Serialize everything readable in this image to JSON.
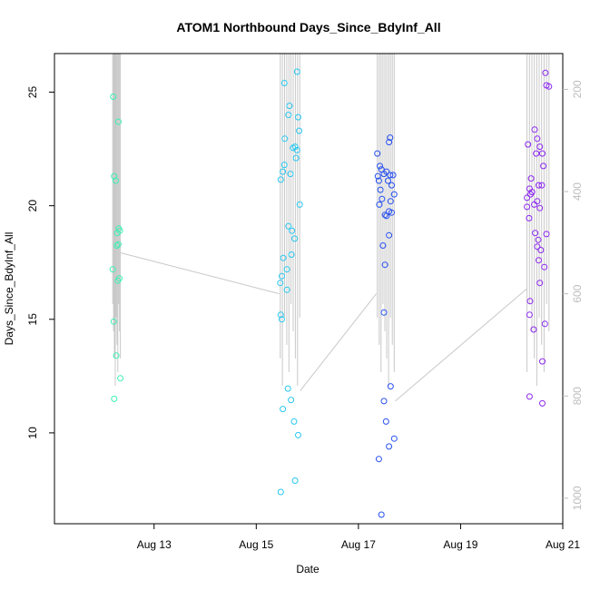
{
  "chart_data": {
    "type": "scatter",
    "title": "ATOM1 Northbound Days_Since_BdyInf_All",
    "xlabel": "Date",
    "ylabel": "Days_Since_BdyInf_All",
    "x_ticks": [
      "Aug 13",
      "Aug 15",
      "Aug 17",
      "Aug 19",
      "Aug 21"
    ],
    "y_ticks": [
      "10",
      "15",
      "20",
      "25"
    ],
    "y2_ticks": [
      "200",
      "400",
      "600",
      "800",
      "1000"
    ],
    "ylim": [
      6.0,
      26.7
    ],
    "y2lim": [
      1050,
      130
    ],
    "x_start_date": "2024-08-12",
    "xlim_days": [
      -0.95,
      9.0
    ],
    "colors": {
      "axis": "#000000",
      "secondary": "#bdbdbd",
      "trace": "#c8c8c8"
    },
    "series": [
      {
        "color": "#3cf0b4",
        "points": [
          [
            0.2,
            24.8
          ],
          [
            0.3,
            23.7
          ],
          [
            0.22,
            21.3
          ],
          [
            0.25,
            21.1
          ],
          [
            0.28,
            18.8
          ],
          [
            0.31,
            19.0
          ],
          [
            0.33,
            18.9
          ],
          [
            0.3,
            18.3
          ],
          [
            0.27,
            18.25
          ],
          [
            0.19,
            17.2
          ],
          [
            0.32,
            16.8
          ],
          [
            0.29,
            16.7
          ],
          [
            0.21,
            14.9
          ],
          [
            0.26,
            13.4
          ],
          [
            0.34,
            12.4
          ],
          [
            0.22,
            11.5
          ]
        ]
      },
      {
        "color": "#28c8f0",
        "points": [
          [
            3.55,
            25.4
          ],
          [
            3.8,
            25.9
          ],
          [
            3.65,
            24.4
          ],
          [
            3.63,
            24.0
          ],
          [
            3.82,
            23.9
          ],
          [
            3.84,
            23.3
          ],
          [
            3.56,
            22.95
          ],
          [
            3.72,
            22.55
          ],
          [
            3.76,
            22.6
          ],
          [
            3.8,
            22.45
          ],
          [
            3.78,
            22.1
          ],
          [
            3.55,
            21.8
          ],
          [
            3.52,
            21.5
          ],
          [
            3.67,
            21.4
          ],
          [
            3.48,
            21.15
          ],
          [
            3.85,
            20.05
          ],
          [
            3.63,
            19.1
          ],
          [
            3.7,
            18.9
          ],
          [
            3.75,
            18.55
          ],
          [
            3.69,
            17.85
          ],
          [
            3.53,
            17.7
          ],
          [
            3.6,
            17.2
          ],
          [
            3.5,
            16.9
          ],
          [
            3.47,
            16.6
          ],
          [
            3.6,
            16.3
          ],
          [
            3.48,
            15.2
          ],
          [
            3.5,
            15.0
          ],
          [
            3.62,
            11.95
          ],
          [
            3.68,
            11.45
          ],
          [
            3.52,
            11.05
          ],
          [
            3.74,
            10.5
          ],
          [
            3.82,
            9.9
          ],
          [
            3.76,
            7.9
          ],
          [
            3.48,
            7.4
          ]
        ]
      },
      {
        "color": "#2850f0",
        "points": [
          [
            5.37,
            22.3
          ],
          [
            5.62,
            23.0
          ],
          [
            5.6,
            22.8
          ],
          [
            5.42,
            21.75
          ],
          [
            5.45,
            21.6
          ],
          [
            5.55,
            21.5
          ],
          [
            5.5,
            21.4
          ],
          [
            5.62,
            21.35
          ],
          [
            5.68,
            21.35
          ],
          [
            5.38,
            21.3
          ],
          [
            5.4,
            21.1
          ],
          [
            5.58,
            21.1
          ],
          [
            5.65,
            20.9
          ],
          [
            5.43,
            20.7
          ],
          [
            5.7,
            20.5
          ],
          [
            5.46,
            20.3
          ],
          [
            5.63,
            20.2
          ],
          [
            5.41,
            20.05
          ],
          [
            5.6,
            19.75
          ],
          [
            5.65,
            19.7
          ],
          [
            5.52,
            19.6
          ],
          [
            5.55,
            19.55
          ],
          [
            5.48,
            18.25
          ],
          [
            5.6,
            18.7
          ],
          [
            5.52,
            17.4
          ],
          [
            5.5,
            15.3
          ],
          [
            5.63,
            12.05
          ],
          [
            5.5,
            11.4
          ],
          [
            5.54,
            10.5
          ],
          [
            5.7,
            9.75
          ],
          [
            5.6,
            9.4
          ],
          [
            5.4,
            8.85
          ],
          [
            5.45,
            6.4
          ]
        ]
      },
      {
        "color": "#8c28f0",
        "points": [
          [
            8.32,
            22.7
          ],
          [
            8.45,
            23.35
          ],
          [
            8.5,
            22.95
          ],
          [
            8.55,
            22.6
          ],
          [
            8.48,
            22.3
          ],
          [
            8.6,
            22.3
          ],
          [
            8.62,
            21.75
          ],
          [
            8.38,
            21.2
          ],
          [
            8.53,
            20.9
          ],
          [
            8.59,
            20.9
          ],
          [
            8.35,
            20.75
          ],
          [
            8.4,
            20.6
          ],
          [
            8.37,
            20.5
          ],
          [
            8.3,
            20.35
          ],
          [
            8.5,
            20.2
          ],
          [
            8.44,
            20.05
          ],
          [
            8.3,
            19.95
          ],
          [
            8.55,
            19.9
          ],
          [
            8.34,
            19.45
          ],
          [
            8.46,
            18.8
          ],
          [
            8.52,
            18.5
          ],
          [
            8.5,
            18.2
          ],
          [
            8.57,
            18.05
          ],
          [
            8.68,
            18.75
          ],
          [
            8.53,
            17.6
          ],
          [
            8.64,
            17.3
          ],
          [
            8.55,
            16.6
          ],
          [
            8.36,
            15.8
          ],
          [
            8.35,
            15.2
          ],
          [
            8.43,
            14.55
          ],
          [
            8.65,
            14.8
          ],
          [
            8.6,
            13.15
          ],
          [
            8.35,
            11.6
          ],
          [
            8.6,
            11.3
          ],
          [
            8.66,
            25.85
          ],
          [
            8.68,
            25.3
          ],
          [
            8.73,
            25.25
          ]
        ]
      }
    ]
  }
}
